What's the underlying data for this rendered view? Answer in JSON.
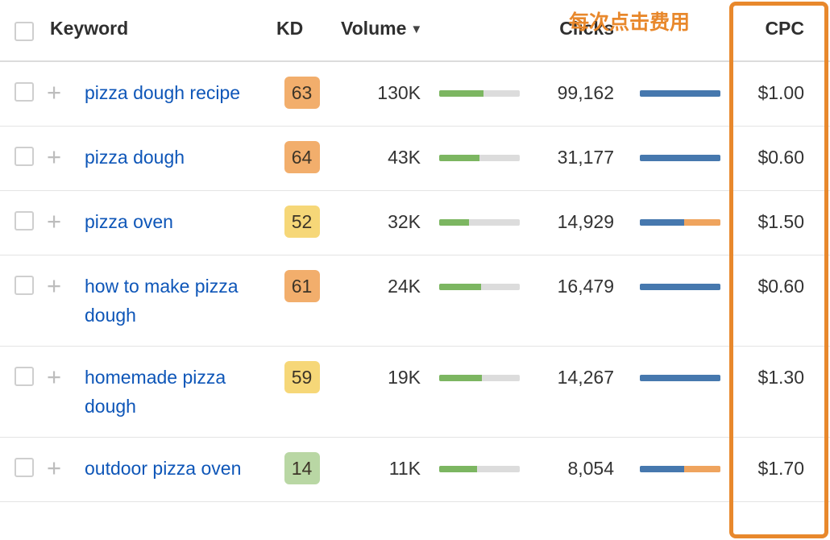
{
  "annotation": {
    "label": "每次点击费用",
    "color": "#e8882c"
  },
  "header": {
    "keyword": "Keyword",
    "kd": "KD",
    "volume": "Volume",
    "sort_caret": "▼",
    "clicks": "Clicks",
    "cpc": "CPC"
  },
  "rows": [
    {
      "keyword": "pizza dough recipe",
      "kd": "63",
      "kd_color": "#f2ae6c",
      "volume": "130K",
      "volume_bar": "55%",
      "clicks": "99,162",
      "clicks_blue": "100%",
      "clicks_orange": "0%",
      "cpc": "$1.00"
    },
    {
      "keyword": "pizza dough",
      "kd": "64",
      "kd_color": "#f2ae6c",
      "volume": "43K",
      "volume_bar": "50%",
      "clicks": "31,177",
      "clicks_blue": "100%",
      "clicks_orange": "0%",
      "cpc": "$0.60"
    },
    {
      "keyword": "pizza oven",
      "kd": "52",
      "kd_color": "#f6d778",
      "volume": "32K",
      "volume_bar": "37%",
      "clicks": "14,929",
      "clicks_blue": "55%",
      "clicks_orange": "45%",
      "cpc": "$1.50"
    },
    {
      "keyword": "how to make pizza dough",
      "kd": "61",
      "kd_color": "#f2ae6c",
      "volume": "24K",
      "volume_bar": "52%",
      "clicks": "16,479",
      "clicks_blue": "100%",
      "clicks_orange": "0%",
      "cpc": "$0.60"
    },
    {
      "keyword": "homemade pizza dough",
      "kd": "59",
      "kd_color": "#f6d778",
      "volume": "19K",
      "volume_bar": "53%",
      "clicks": "14,267",
      "clicks_blue": "100%",
      "clicks_orange": "0%",
      "cpc": "$1.30"
    },
    {
      "keyword": "outdoor pizza oven",
      "kd": "14",
      "kd_color": "#b9d7a4",
      "volume": "11K",
      "volume_bar": "47%",
      "clicks": "8,054",
      "clicks_blue": "55%",
      "clicks_orange": "45%",
      "cpc": "$1.70"
    }
  ]
}
